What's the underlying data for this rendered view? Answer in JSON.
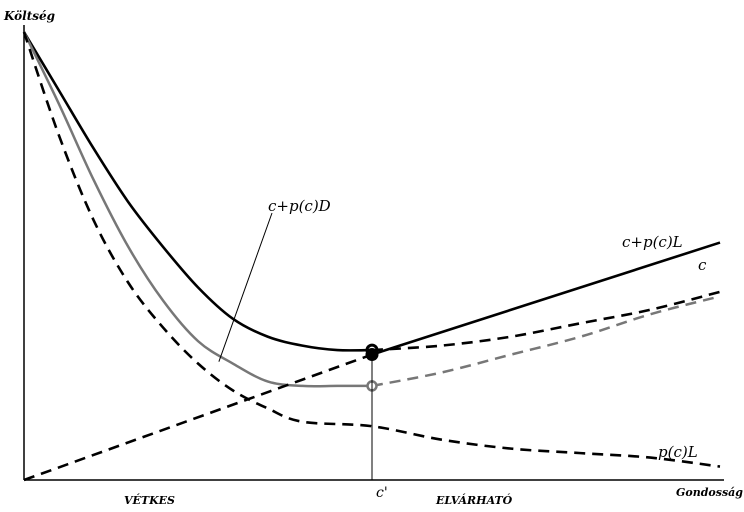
{
  "chart_data": {
    "type": "line",
    "title": "",
    "ylabel": "Költség",
    "xlabel": "Gondosság",
    "x_tick_label": "c'",
    "region_labels": [
      "VÉTKES",
      "ELVÁRHATÓ"
    ],
    "xlim": [
      0,
      1
    ],
    "ylim": [
      0,
      1
    ],
    "threshold_x": 0.5,
    "grid": false,
    "legend": "none",
    "series": [
      {
        "name": "c+p(c)D",
        "color": "#000000",
        "dash": "solid",
        "x": [
          0,
          0.05,
          0.1,
          0.15,
          0.2,
          0.25,
          0.3,
          0.35,
          0.4,
          0.45,
          0.5
        ],
        "y": [
          1.0,
          0.87,
          0.74,
          0.62,
          0.52,
          0.43,
          0.36,
          0.32,
          0.3,
          0.29,
          0.29
        ]
      },
      {
        "name": "",
        "color": "#777777",
        "dash": "solid",
        "x": [
          0,
          0.05,
          0.1,
          0.15,
          0.2,
          0.25,
          0.3,
          0.35,
          0.4,
          0.45,
          0.5
        ],
        "y": [
          1.0,
          0.84,
          0.67,
          0.52,
          0.4,
          0.31,
          0.26,
          0.22,
          0.21,
          0.21,
          0.21
        ]
      },
      {
        "name": "c+p(c)L",
        "color": "#000000",
        "dash": "dashed",
        "x": [
          0.5,
          0.6,
          0.7,
          0.8,
          0.9,
          1.0
        ],
        "y": [
          0.29,
          0.3,
          0.32,
          0.35,
          0.38,
          0.42
        ]
      },
      {
        "name": "",
        "color": "#777777",
        "dash": "dashed",
        "x": [
          0.5,
          0.6,
          0.7,
          0.8,
          0.9,
          1.0
        ],
        "y": [
          0.21,
          0.24,
          0.28,
          0.32,
          0.37,
          0.41
        ]
      },
      {
        "name": "c",
        "color": "#000000",
        "dash": "dashed",
        "x": [
          0,
          0.5
        ],
        "y": [
          0,
          0.28
        ]
      },
      {
        "name": "c",
        "color": "#000000",
        "dash": "solid",
        "x": [
          0.5,
          1.0
        ],
        "y": [
          0.28,
          0.53
        ]
      },
      {
        "name": "p(c)L",
        "color": "#000000",
        "dash": "dashed",
        "x": [
          0,
          0.05,
          0.1,
          0.15,
          0.2,
          0.25,
          0.3,
          0.35,
          0.4,
          0.5,
          0.6,
          0.7,
          0.8,
          0.9,
          1.0
        ],
        "y": [
          1.0,
          0.77,
          0.58,
          0.44,
          0.34,
          0.26,
          0.2,
          0.16,
          0.13,
          0.12,
          0.09,
          0.07,
          0.06,
          0.05,
          0.03
        ]
      }
    ]
  }
}
